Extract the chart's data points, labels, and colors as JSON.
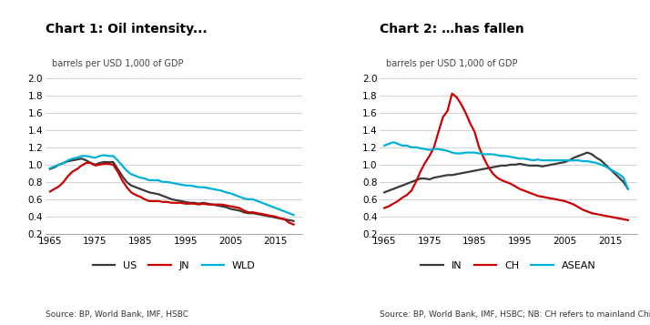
{
  "chart1_title": "Chart 1: Oil intensity...",
  "chart2_title": "Chart 2: …has fallen",
  "ylabel": "barrels per USD 1,000 of GDP",
  "ylim": [
    0.2,
    2.0
  ],
  "yticks": [
    0.2,
    0.4,
    0.6,
    0.8,
    1.0,
    1.2,
    1.4,
    1.6,
    1.8,
    2.0
  ],
  "source1": "Source: BP, World Bank, IMF, HSBC",
  "source2": "Source: BP, World Bank, IMF, HSBC; NB: CH refers to mainland China",
  "color_dark": "#3a3a3a",
  "color_red": "#cc0000",
  "color_blue": "#00b0d8",
  "years1": [
    1965,
    1966,
    1967,
    1968,
    1969,
    1970,
    1971,
    1972,
    1973,
    1974,
    1975,
    1976,
    1977,
    1978,
    1979,
    1980,
    1981,
    1982,
    1983,
    1984,
    1985,
    1986,
    1987,
    1988,
    1989,
    1990,
    1991,
    1992,
    1993,
    1994,
    1995,
    1996,
    1997,
    1998,
    1999,
    2000,
    2001,
    2002,
    2003,
    2004,
    2005,
    2006,
    2007,
    2008,
    2009,
    2010,
    2011,
    2012,
    2013,
    2014,
    2015,
    2016,
    2017,
    2018,
    2019
  ],
  "US": [
    0.95,
    0.97,
    1.0,
    1.02,
    1.04,
    1.05,
    1.06,
    1.07,
    1.05,
    1.02,
    1.0,
    1.02,
    1.03,
    1.03,
    1.03,
    0.95,
    0.87,
    0.8,
    0.76,
    0.74,
    0.72,
    0.7,
    0.68,
    0.67,
    0.66,
    0.64,
    0.62,
    0.6,
    0.59,
    0.58,
    0.57,
    0.56,
    0.56,
    0.55,
    0.56,
    0.55,
    0.54,
    0.53,
    0.52,
    0.51,
    0.49,
    0.48,
    0.47,
    0.45,
    0.44,
    0.44,
    0.43,
    0.42,
    0.41,
    0.4,
    0.39,
    0.38,
    0.37,
    0.36,
    0.35
  ],
  "JN": [
    0.69,
    0.72,
    0.75,
    0.8,
    0.87,
    0.92,
    0.95,
    0.99,
    1.02,
    1.02,
    0.99,
    1.0,
    1.01,
    1.01,
    1.0,
    0.92,
    0.82,
    0.74,
    0.68,
    0.65,
    0.63,
    0.6,
    0.58,
    0.58,
    0.58,
    0.57,
    0.57,
    0.56,
    0.56,
    0.56,
    0.55,
    0.55,
    0.55,
    0.54,
    0.55,
    0.54,
    0.54,
    0.54,
    0.54,
    0.53,
    0.52,
    0.51,
    0.5,
    0.47,
    0.45,
    0.45,
    0.44,
    0.43,
    0.42,
    0.41,
    0.4,
    0.38,
    0.37,
    0.33,
    0.31
  ],
  "WLD": [
    0.96,
    0.98,
    1.0,
    1.02,
    1.05,
    1.07,
    1.08,
    1.1,
    1.1,
    1.09,
    1.08,
    1.1,
    1.11,
    1.1,
    1.1,
    1.05,
    0.99,
    0.93,
    0.89,
    0.87,
    0.85,
    0.84,
    0.82,
    0.82,
    0.82,
    0.8,
    0.8,
    0.79,
    0.78,
    0.77,
    0.76,
    0.76,
    0.75,
    0.74,
    0.74,
    0.73,
    0.72,
    0.71,
    0.7,
    0.68,
    0.67,
    0.65,
    0.63,
    0.61,
    0.6,
    0.6,
    0.58,
    0.56,
    0.54,
    0.52,
    0.5,
    0.48,
    0.46,
    0.44,
    0.42
  ],
  "years2": [
    1965,
    1966,
    1967,
    1968,
    1969,
    1970,
    1971,
    1972,
    1973,
    1974,
    1975,
    1976,
    1977,
    1978,
    1979,
    1980,
    1981,
    1982,
    1983,
    1984,
    1985,
    1986,
    1987,
    1988,
    1989,
    1990,
    1991,
    1992,
    1993,
    1994,
    1995,
    1996,
    1997,
    1998,
    1999,
    2000,
    2001,
    2002,
    2003,
    2004,
    2005,
    2006,
    2007,
    2008,
    2009,
    2010,
    2011,
    2012,
    2013,
    2014,
    2015,
    2016,
    2017,
    2018,
    2019
  ],
  "IN": [
    0.68,
    0.7,
    0.72,
    0.74,
    0.76,
    0.78,
    0.8,
    0.82,
    0.84,
    0.84,
    0.83,
    0.85,
    0.86,
    0.87,
    0.88,
    0.88,
    0.89,
    0.9,
    0.91,
    0.92,
    0.93,
    0.94,
    0.95,
    0.96,
    0.97,
    0.98,
    0.99,
    0.99,
    1.0,
    1.0,
    1.01,
    1.0,
    0.99,
    0.99,
    0.99,
    0.98,
    0.99,
    1.0,
    1.01,
    1.02,
    1.03,
    1.05,
    1.08,
    1.1,
    1.12,
    1.14,
    1.12,
    1.08,
    1.05,
    1.0,
    0.95,
    0.9,
    0.85,
    0.8,
    0.72
  ],
  "CH": [
    0.5,
    0.52,
    0.55,
    0.58,
    0.62,
    0.65,
    0.7,
    0.8,
    0.92,
    1.02,
    1.1,
    1.2,
    1.38,
    1.55,
    1.62,
    1.82,
    1.78,
    1.7,
    1.6,
    1.48,
    1.38,
    1.2,
    1.08,
    0.98,
    0.9,
    0.85,
    0.82,
    0.8,
    0.78,
    0.75,
    0.72,
    0.7,
    0.68,
    0.66,
    0.64,
    0.63,
    0.62,
    0.61,
    0.6,
    0.59,
    0.58,
    0.56,
    0.54,
    0.51,
    0.48,
    0.46,
    0.44,
    0.43,
    0.42,
    0.41,
    0.4,
    0.39,
    0.38,
    0.37,
    0.36
  ],
  "ASEAN": [
    1.22,
    1.24,
    1.26,
    1.24,
    1.22,
    1.22,
    1.2,
    1.2,
    1.19,
    1.18,
    1.17,
    1.18,
    1.18,
    1.17,
    1.16,
    1.14,
    1.13,
    1.13,
    1.14,
    1.14,
    1.14,
    1.13,
    1.12,
    1.12,
    1.12,
    1.11,
    1.1,
    1.1,
    1.09,
    1.08,
    1.07,
    1.07,
    1.06,
    1.05,
    1.06,
    1.05,
    1.05,
    1.05,
    1.05,
    1.05,
    1.05,
    1.05,
    1.05,
    1.05,
    1.04,
    1.04,
    1.03,
    1.02,
    1.0,
    0.98,
    0.95,
    0.92,
    0.89,
    0.85,
    0.72
  ]
}
